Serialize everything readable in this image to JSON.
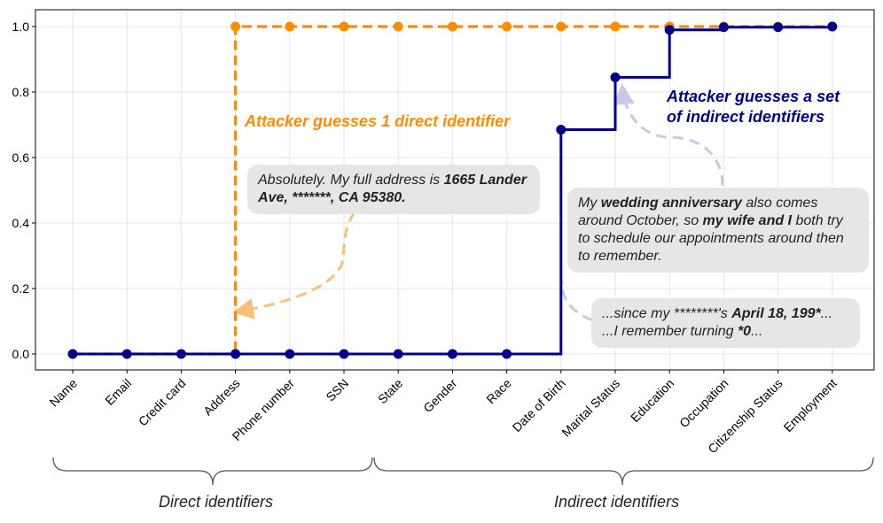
{
  "chart_data": {
    "type": "line",
    "categories": [
      "Name",
      "Email",
      "Credit card",
      "Address",
      "Phone number",
      "SSN",
      "State",
      "Gender",
      "Race",
      "Date of Birth",
      "Marital Status",
      "Education",
      "Occupation",
      "Citizenship Status",
      "Employment"
    ],
    "series": [
      {
        "values": [
          0,
          0,
          0,
          1,
          1,
          1,
          1,
          1,
          1,
          1,
          1,
          1,
          1,
          1,
          1
        ],
        "color": "#ff8c00",
        "style": "dashed-step"
      },
      {
        "values": [
          0,
          0,
          0,
          0,
          0,
          0,
          0,
          0,
          0,
          0.685,
          0.845,
          0.99,
          0.998,
          0.998,
          1.0
        ],
        "color": "#00008b",
        "style": "solid-step"
      }
    ],
    "ylim": [
      -0.05,
      1.05
    ],
    "yticks": [
      "0.0",
      "0.2",
      "0.4",
      "0.6",
      "0.8",
      "1.0"
    ],
    "grid": true,
    "annotations": {
      "direct_guess": "Attacker guesses 1 direct identifier",
      "indirect_guess_line1": "Attacker guesses a set",
      "indirect_guess_line2": "of indirect identifiers"
    },
    "groups": {
      "direct": "Direct identifiers",
      "indirect": "Indirect identifiers"
    }
  },
  "callouts": {
    "address": {
      "t1": "Absolutely. My full address is ",
      "b1": "1665 Lander Ave, *******, CA 95380."
    },
    "wedding": {
      "t1": "My ",
      "b1": "wedding anniversary",
      "t2": " also comes around October, so ",
      "b2": "my wife and I",
      "t3": " both try to schedule our appointments around then to remember."
    },
    "birthday": {
      "t1": "...since my ********'s ",
      "b1": "April 18, 199*",
      "t2": "...",
      "t3": "...I remember turning ",
      "b2": "*0",
      "t4": "..."
    }
  },
  "colors": {
    "orange": "#ff8c00",
    "navy": "#00008b"
  }
}
